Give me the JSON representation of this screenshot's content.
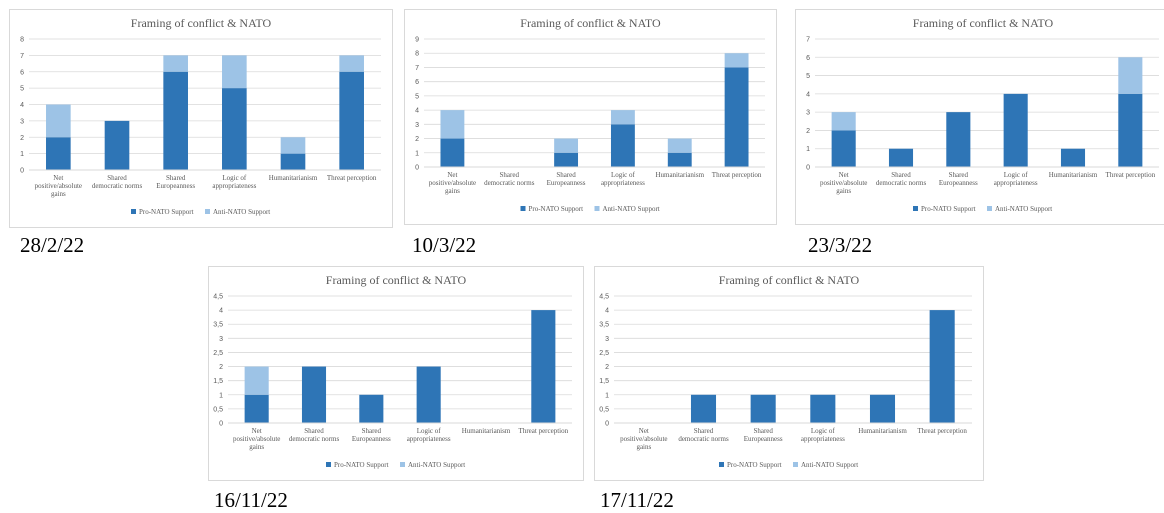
{
  "colors": {
    "pro": "#2e75b6",
    "anti": "#9dc3e6",
    "grid": "#d9d9d9",
    "frame": "#d9d9d9",
    "text": "#595959"
  },
  "chart_data": [
    {
      "type": "bar",
      "stacked": true,
      "date_label": "28/2/22",
      "title": "Framing of conflict & NATO",
      "categories": [
        [
          "Net",
          "positive/absolute",
          "gains"
        ],
        [
          "Shared",
          "democratic norms"
        ],
        [
          "Shared",
          "Europeanness"
        ],
        [
          "Logic of",
          "appropriateness"
        ],
        [
          "Humanitarianism"
        ],
        [
          "Threat perception"
        ]
      ],
      "series": [
        {
          "name": "Pro-NATO Support",
          "values": [
            2,
            3,
            6,
            5,
            1,
            6
          ]
        },
        {
          "name": "Anti-NATO Support",
          "values": [
            2,
            0,
            1,
            2,
            1,
            1
          ]
        }
      ],
      "yticks": [
        "0",
        "1",
        "2",
        "3",
        "4",
        "5",
        "6",
        "7",
        "8"
      ],
      "ylim": [
        0,
        8
      ],
      "grid": true,
      "legend": "bottom"
    },
    {
      "type": "bar",
      "stacked": true,
      "date_label": "10/3/22",
      "title": "Framing of conflict & NATO",
      "categories": [
        [
          "Net",
          "positive/absolute",
          "gains"
        ],
        [
          "Shared",
          "democratic norms"
        ],
        [
          "Shared",
          "Europeanness"
        ],
        [
          "Logic of",
          "appropriateness"
        ],
        [
          "Humanitarianism"
        ],
        [
          "Threat perception"
        ]
      ],
      "series": [
        {
          "name": "Pro-NATO Support",
          "values": [
            2,
            0,
            1,
            3,
            1,
            7
          ]
        },
        {
          "name": "Anti-NATO Support",
          "values": [
            2,
            0,
            1,
            1,
            1,
            1
          ]
        }
      ],
      "yticks": [
        "0",
        "1",
        "2",
        "3",
        "4",
        "5",
        "6",
        "7",
        "8",
        "9"
      ],
      "ylim": [
        0,
        9
      ],
      "grid": true,
      "legend": "bottom"
    },
    {
      "type": "bar",
      "stacked": true,
      "date_label": "23/3/22",
      "title": "Framing of conflict & NATO",
      "categories": [
        [
          "Net",
          "positive/absolute",
          "gains"
        ],
        [
          "Shared",
          "democratic norms"
        ],
        [
          "Shared",
          "Europeanness"
        ],
        [
          "Logic of",
          "appropriateness"
        ],
        [
          "Humanitarianism"
        ],
        [
          "Threat perception"
        ]
      ],
      "series": [
        {
          "name": "Pro-NATO Support",
          "values": [
            2,
            1,
            3,
            4,
            1,
            4
          ]
        },
        {
          "name": "Anti-NATO Support",
          "values": [
            1,
            0,
            0,
            0,
            0,
            2
          ]
        }
      ],
      "yticks": [
        "0",
        "1",
        "2",
        "3",
        "4",
        "5",
        "6",
        "7"
      ],
      "ylim": [
        0,
        7
      ],
      "grid": true,
      "legend": "bottom"
    },
    {
      "type": "bar",
      "stacked": true,
      "date_label": "16/11/22",
      "title": "Framing of conflict & NATO",
      "categories": [
        [
          "Net",
          "positive/absolute",
          "gains"
        ],
        [
          "Shared",
          "democratic norms"
        ],
        [
          "Shared",
          "Europeanness"
        ],
        [
          "Logic of",
          "appropriateness"
        ],
        [
          "Humanitarianism"
        ],
        [
          "Threat perception"
        ]
      ],
      "series": [
        {
          "name": "Pro-NATO Support",
          "values": [
            1,
            2,
            1,
            2,
            0,
            4
          ]
        },
        {
          "name": "Anti-NATO Support",
          "values": [
            1,
            0,
            0,
            0,
            0,
            0
          ]
        }
      ],
      "yticks": [
        "0",
        "0,5",
        "1",
        "1,5",
        "2",
        "2,5",
        "3",
        "3,5",
        "4",
        "4,5"
      ],
      "ylim": [
        0,
        4.5
      ],
      "grid": true,
      "legend": "bottom"
    },
    {
      "type": "bar",
      "stacked": true,
      "date_label": "17/11/22",
      "title": "Framing of conflict & NATO",
      "categories": [
        [
          "Net",
          "positive/absolute",
          "gains"
        ],
        [
          "Shared",
          "democratic norms"
        ],
        [
          "Shared",
          "Europeanness"
        ],
        [
          "Logic of",
          "appropriateness"
        ],
        [
          "Humanitarianism"
        ],
        [
          "Threat perception"
        ]
      ],
      "series": [
        {
          "name": "Pro-NATO Support",
          "values": [
            0,
            1,
            1,
            1,
            1,
            4
          ]
        },
        {
          "name": "Anti-NATO Support",
          "values": [
            0,
            0,
            0,
            0,
            0,
            0
          ]
        }
      ],
      "yticks": [
        "0",
        "0,5",
        "1",
        "1,5",
        "2",
        "2,5",
        "3",
        "3,5",
        "4",
        "4,5"
      ],
      "ylim": [
        0,
        4.5
      ],
      "grid": true,
      "legend": "bottom"
    }
  ]
}
